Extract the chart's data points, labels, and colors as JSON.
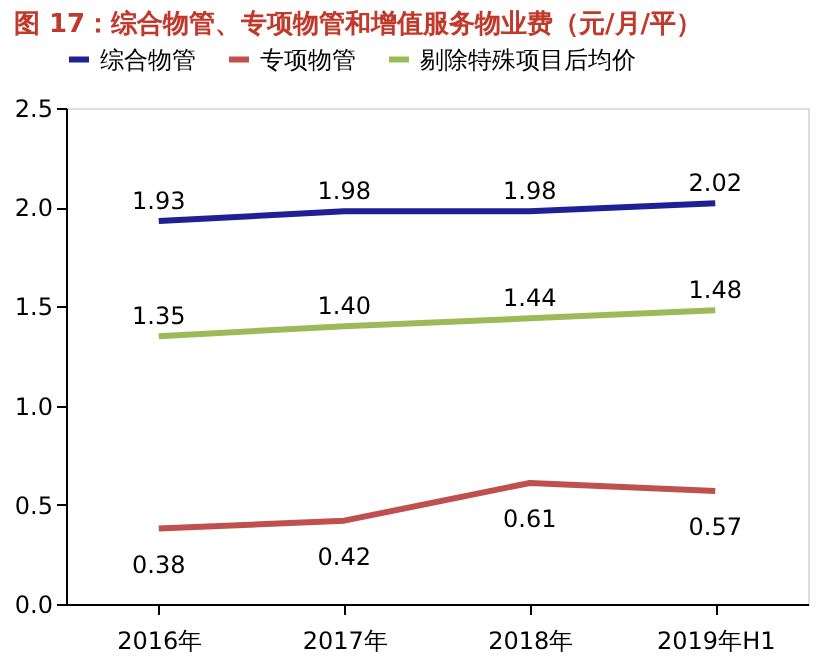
{
  "chart_data": {
    "type": "line",
    "title": "图 17：综合物管、专项物管和增值服务物业费（元/月/平）",
    "categories": [
      "2016年",
      "2017年",
      "2018年",
      "2019年H1"
    ],
    "series": [
      {
        "name": "综合物管",
        "color": "#1f1f96",
        "values": [
          1.93,
          1.98,
          1.98,
          2.02
        ]
      },
      {
        "name": "专项物管",
        "color": "#c0504d",
        "values": [
          0.38,
          0.42,
          0.61,
          0.57
        ]
      },
      {
        "name": "剔除特殊项目后均价",
        "color": "#9bbb59",
        "values": [
          1.35,
          1.4,
          1.44,
          1.48
        ],
        "value_labels": [
          "1.35",
          "1.40",
          "1.44",
          "1.48"
        ]
      }
    ],
    "ylim": [
      0,
      2.5
    ],
    "yticks": [
      {
        "value": 0,
        "label": "0.0"
      },
      {
        "value": 0.5,
        "label": "0.5"
      },
      {
        "value": 1,
        "label": "1.0"
      },
      {
        "value": 1.5,
        "label": "1.5"
      },
      {
        "value": 2,
        "label": "2.0"
      },
      {
        "value": 2.5,
        "label": "2.5"
      }
    ],
    "data_labels": true,
    "grid": false,
    "legend": "top",
    "marker": "none",
    "line_style": "solid"
  }
}
